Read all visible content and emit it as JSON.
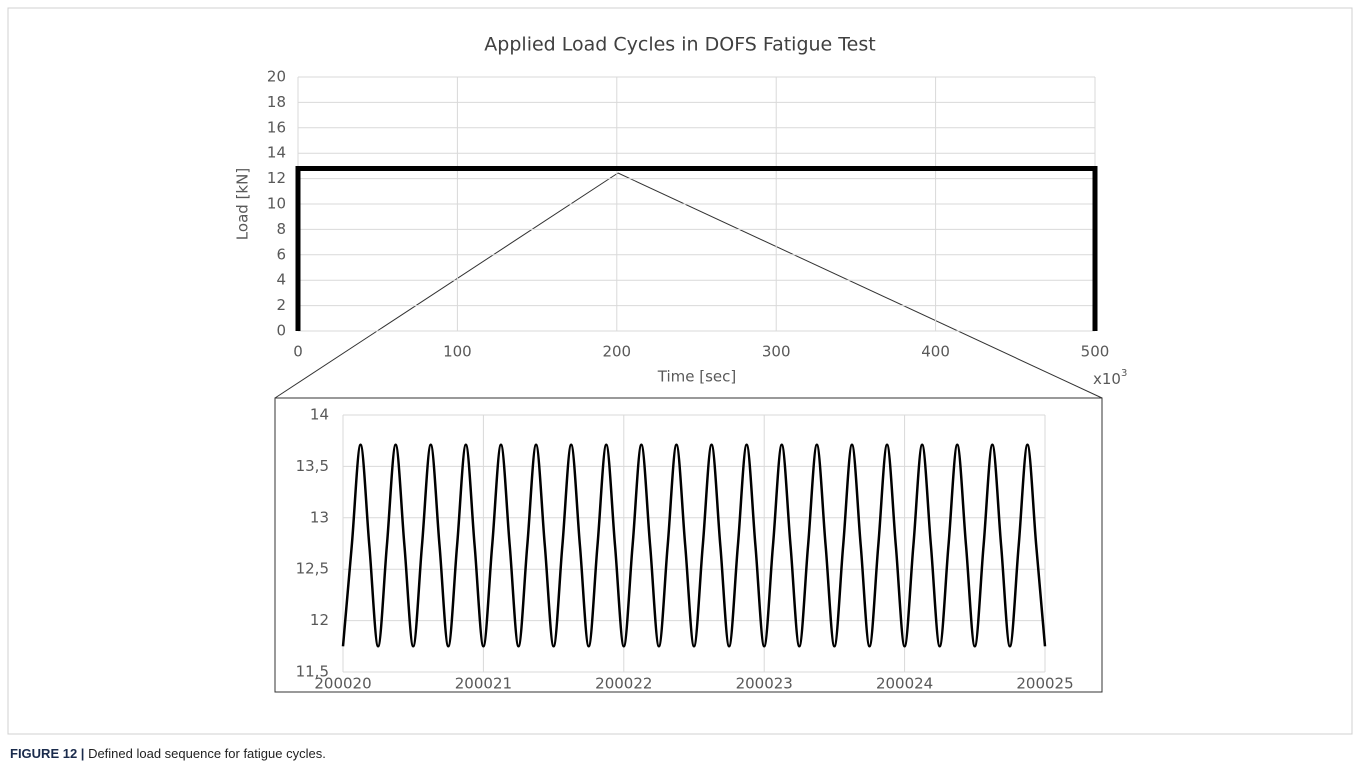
{
  "chart_data": [
    {
      "type": "line",
      "title": "Applied Load Cycles in DOFS Fatigue Test",
      "x_label": "Time [sec]",
      "x_multiplier": "x10",
      "x_multiplier_exp": "3",
      "y_label": "Load [kN]",
      "xlim": [
        0,
        500
      ],
      "xticks": [
        0,
        100,
        200,
        300,
        400,
        500
      ],
      "ylim": [
        0,
        20
      ],
      "yticks": [
        0,
        2,
        4,
        6,
        8,
        10,
        12,
        14,
        16,
        18,
        20
      ],
      "grid": true,
      "series": [
        {
          "color": "#000000",
          "x": [
            0,
            0,
            500,
            500
          ],
          "values": [
            0,
            12.8,
            12.8,
            0
          ]
        }
      ]
    },
    {
      "type": "line",
      "xlim": [
        200020,
        200025
      ],
      "xticks": [
        200020,
        200021,
        200022,
        200023,
        200024,
        200025
      ],
      "ylim": [
        11.5,
        14
      ],
      "yticks": [
        {
          "value": 11.5,
          "label": "11,5"
        },
        12,
        {
          "value": 12.5,
          "label": "12,5"
        },
        13,
        {
          "value": 13.5,
          "label": "13,5"
        },
        14
      ],
      "grid": true,
      "series": [
        {
          "color": "#000000",
          "x": [
            200020,
            200020.0625,
            200020.125,
            200020.1875,
            200020.25,
            200020.3125,
            200020.375,
            200020.4375,
            200020.5,
            200020.5625,
            200020.625,
            200020.6875,
            200020.75,
            200020.8125,
            200020.875,
            200020.9375,
            200021,
            200021.0625,
            200021.125,
            200021.1875,
            200021.25,
            200021.3125,
            200021.375,
            200021.4375,
            200021.5,
            200021.5625,
            200021.625,
            200021.6875,
            200021.75,
            200021.8125,
            200021.875,
            200021.9375,
            200022,
            200022.0625,
            200022.125,
            200022.1875,
            200022.25,
            200022.3125,
            200022.375,
            200022.4375,
            200022.5,
            200022.5625,
            200022.625,
            200022.6875,
            200022.75,
            200022.8125,
            200022.875,
            200022.9375,
            200023,
            200023.0625,
            200023.125,
            200023.1875,
            200023.25,
            200023.3125,
            200023.375,
            200023.4375,
            200023.5,
            200023.5625,
            200023.625,
            200023.6875,
            200023.75,
            200023.8125,
            200023.875,
            200023.9375,
            200024,
            200024.0625,
            200024.125,
            200024.1875,
            200024.25,
            200024.3125,
            200024.375,
            200024.4375,
            200024.5,
            200024.5625,
            200024.625,
            200024.6875,
            200024.75,
            200024.8125,
            200024.875,
            200024.9375,
            200025
          ],
          "values": [
            11.75,
            12.73,
            13.71,
            12.73,
            11.75,
            12.73,
            13.71,
            12.73,
            11.75,
            12.73,
            13.71,
            12.73,
            11.75,
            12.73,
            13.71,
            12.73,
            11.75,
            12.73,
            13.71,
            12.73,
            11.75,
            12.73,
            13.71,
            12.73,
            11.75,
            12.73,
            13.71,
            12.73,
            11.75,
            12.73,
            13.71,
            12.73,
            11.75,
            12.73,
            13.71,
            12.73,
            11.75,
            12.73,
            13.71,
            12.73,
            11.75,
            12.73,
            13.71,
            12.73,
            11.75,
            12.73,
            13.71,
            12.73,
            11.75,
            12.73,
            13.71,
            12.73,
            11.75,
            12.73,
            13.71,
            12.73,
            11.75,
            12.73,
            13.71,
            12.73,
            11.75,
            12.73,
            13.71,
            12.73,
            11.75,
            12.73,
            13.71,
            12.73,
            11.75,
            12.73,
            13.71,
            12.73,
            11.75,
            12.73,
            13.71,
            12.73,
            11.75,
            12.73,
            13.71,
            12.73,
            11.75
          ]
        }
      ]
    }
  ],
  "caption": {
    "label": "FIGURE 12 |",
    "text": "Defined load sequence for fatigue cycles."
  }
}
